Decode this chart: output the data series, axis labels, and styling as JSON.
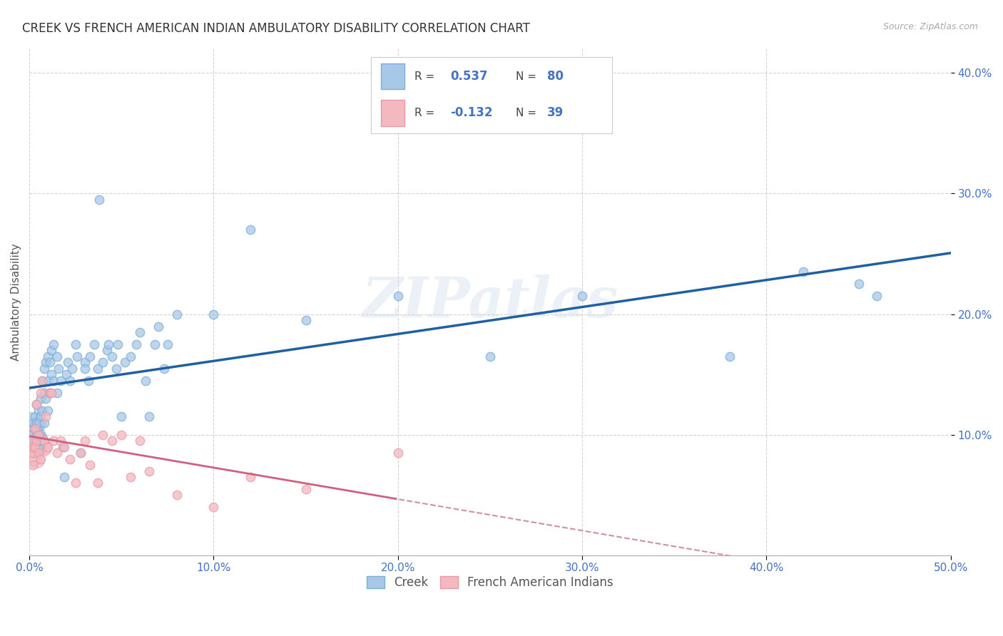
{
  "title": "CREEK VS FRENCH AMERICAN INDIAN AMBULATORY DISABILITY CORRELATION CHART",
  "source": "Source: ZipAtlas.com",
  "ylabel": "Ambulatory Disability",
  "xlim": [
    0.0,
    0.5
  ],
  "ylim": [
    0.0,
    0.42
  ],
  "xticks": [
    0.0,
    0.1,
    0.2,
    0.3,
    0.4,
    0.5
  ],
  "yticks": [
    0.1,
    0.2,
    0.3,
    0.4
  ],
  "xticklabels": [
    "0.0%",
    "10.0%",
    "20.0%",
    "30.0%",
    "40.0%",
    "50.0%"
  ],
  "yticklabels": [
    "10.0%",
    "20.0%",
    "30.0%",
    "40.0%"
  ],
  "creek_color": "#a8c8e8",
  "french_color": "#f4b8c0",
  "creek_edge_color": "#7bafd4",
  "french_edge_color": "#e89aa4",
  "creek_line_color": "#2060a0",
  "french_line_solid_color": "#d06080",
  "french_line_dash_color": "#d090a0",
  "creek_R": 0.537,
  "creek_N": 80,
  "french_R": -0.132,
  "french_N": 39,
  "legend_label_creek": "Creek",
  "legend_label_french": "French American Indians",
  "creek_x": [
    0.001,
    0.002,
    0.002,
    0.003,
    0.003,
    0.003,
    0.004,
    0.004,
    0.004,
    0.005,
    0.005,
    0.005,
    0.005,
    0.006,
    0.006,
    0.006,
    0.007,
    0.007,
    0.008,
    0.008,
    0.008,
    0.009,
    0.009,
    0.01,
    0.01,
    0.01,
    0.011,
    0.011,
    0.012,
    0.012,
    0.013,
    0.013,
    0.015,
    0.015,
    0.016,
    0.017,
    0.018,
    0.019,
    0.02,
    0.021,
    0.022,
    0.023,
    0.025,
    0.026,
    0.028,
    0.03,
    0.03,
    0.032,
    0.033,
    0.035,
    0.037,
    0.038,
    0.04,
    0.042,
    0.043,
    0.045,
    0.047,
    0.048,
    0.05,
    0.052,
    0.055,
    0.058,
    0.06,
    0.063,
    0.065,
    0.068,
    0.07,
    0.073,
    0.075,
    0.08,
    0.1,
    0.12,
    0.15,
    0.2,
    0.25,
    0.3,
    0.38,
    0.42,
    0.45,
    0.46
  ],
  "creek_y": [
    0.1,
    0.095,
    0.11,
    0.115,
    0.105,
    0.095,
    0.125,
    0.11,
    0.1,
    0.12,
    0.11,
    0.1,
    0.09,
    0.13,
    0.115,
    0.095,
    0.145,
    0.12,
    0.155,
    0.135,
    0.11,
    0.16,
    0.13,
    0.165,
    0.145,
    0.12,
    0.16,
    0.135,
    0.17,
    0.15,
    0.175,
    0.145,
    0.165,
    0.135,
    0.155,
    0.145,
    0.09,
    0.065,
    0.15,
    0.16,
    0.145,
    0.155,
    0.175,
    0.165,
    0.085,
    0.16,
    0.155,
    0.145,
    0.165,
    0.175,
    0.155,
    0.295,
    0.16,
    0.17,
    0.175,
    0.165,
    0.155,
    0.175,
    0.115,
    0.16,
    0.165,
    0.175,
    0.185,
    0.145,
    0.115,
    0.175,
    0.19,
    0.155,
    0.175,
    0.2,
    0.2,
    0.27,
    0.195,
    0.215,
    0.165,
    0.215,
    0.165,
    0.235,
    0.225,
    0.215
  ],
  "french_x": [
    0.001,
    0.001,
    0.002,
    0.002,
    0.003,
    0.003,
    0.004,
    0.004,
    0.005,
    0.005,
    0.006,
    0.006,
    0.007,
    0.008,
    0.009,
    0.01,
    0.011,
    0.012,
    0.013,
    0.015,
    0.017,
    0.019,
    0.022,
    0.025,
    0.028,
    0.03,
    0.033,
    0.037,
    0.04,
    0.045,
    0.05,
    0.055,
    0.06,
    0.065,
    0.08,
    0.1,
    0.12,
    0.15,
    0.2
  ],
  "french_y": [
    0.085,
    0.095,
    0.075,
    0.09,
    0.105,
    0.09,
    0.125,
    0.095,
    0.1,
    0.085,
    0.135,
    0.08,
    0.145,
    0.095,
    0.115,
    0.09,
    0.135,
    0.135,
    0.095,
    0.085,
    0.095,
    0.09,
    0.08,
    0.06,
    0.085,
    0.095,
    0.075,
    0.06,
    0.1,
    0.095,
    0.1,
    0.065,
    0.095,
    0.07,
    0.05,
    0.04,
    0.065,
    0.055,
    0.085
  ],
  "watermark": "ZIPatlas",
  "background_color": "#ffffff",
  "grid_color": "#c8c8c8",
  "title_color": "#333333",
  "tick_color": "#4472c4"
}
